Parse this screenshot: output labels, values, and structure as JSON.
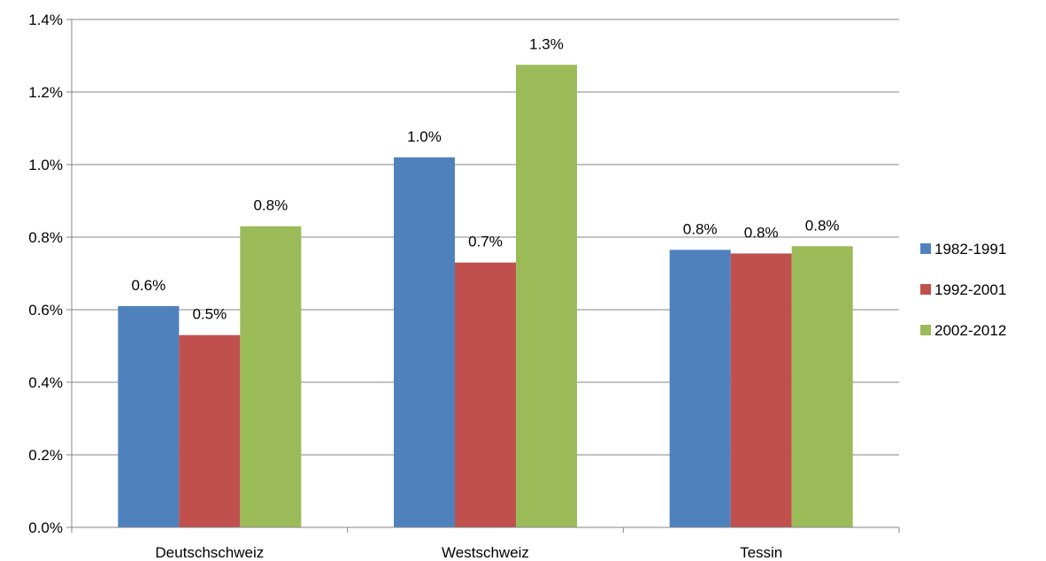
{
  "chart_data": {
    "type": "bar",
    "categories": [
      "Deutschschweiz",
      "Westschweiz",
      "Tessin"
    ],
    "series": [
      {
        "name": "1982-1991",
        "color": "#4F81BD",
        "values": [
          0.0061,
          0.0102,
          0.00765
        ],
        "labels": [
          "0.6%",
          "1.0%",
          "0.8%"
        ]
      },
      {
        "name": "1992-2001",
        "color": "#C0504D",
        "values": [
          0.0053,
          0.0073,
          0.00755
        ],
        "labels": [
          "0.5%",
          "0.7%",
          "0.8%"
        ]
      },
      {
        "name": "2002-2012",
        "color": "#9BBB59",
        "values": [
          0.0083,
          0.01275,
          0.00775
        ],
        "labels": [
          "0.8%",
          "1.3%",
          "0.8%"
        ]
      }
    ],
    "ylim": [
      0,
      0.014
    ],
    "yticks": [
      0,
      0.002,
      0.004,
      0.006,
      0.008,
      0.01,
      0.012,
      0.014
    ],
    "ytick_labels": [
      "0.0%",
      "0.2%",
      "0.4%",
      "0.6%",
      "0.8%",
      "1.0%",
      "1.2%",
      "1.4%"
    ],
    "grid": true,
    "legend_position": "right",
    "gridline_color": "#868686",
    "axis_color": "#868686"
  }
}
